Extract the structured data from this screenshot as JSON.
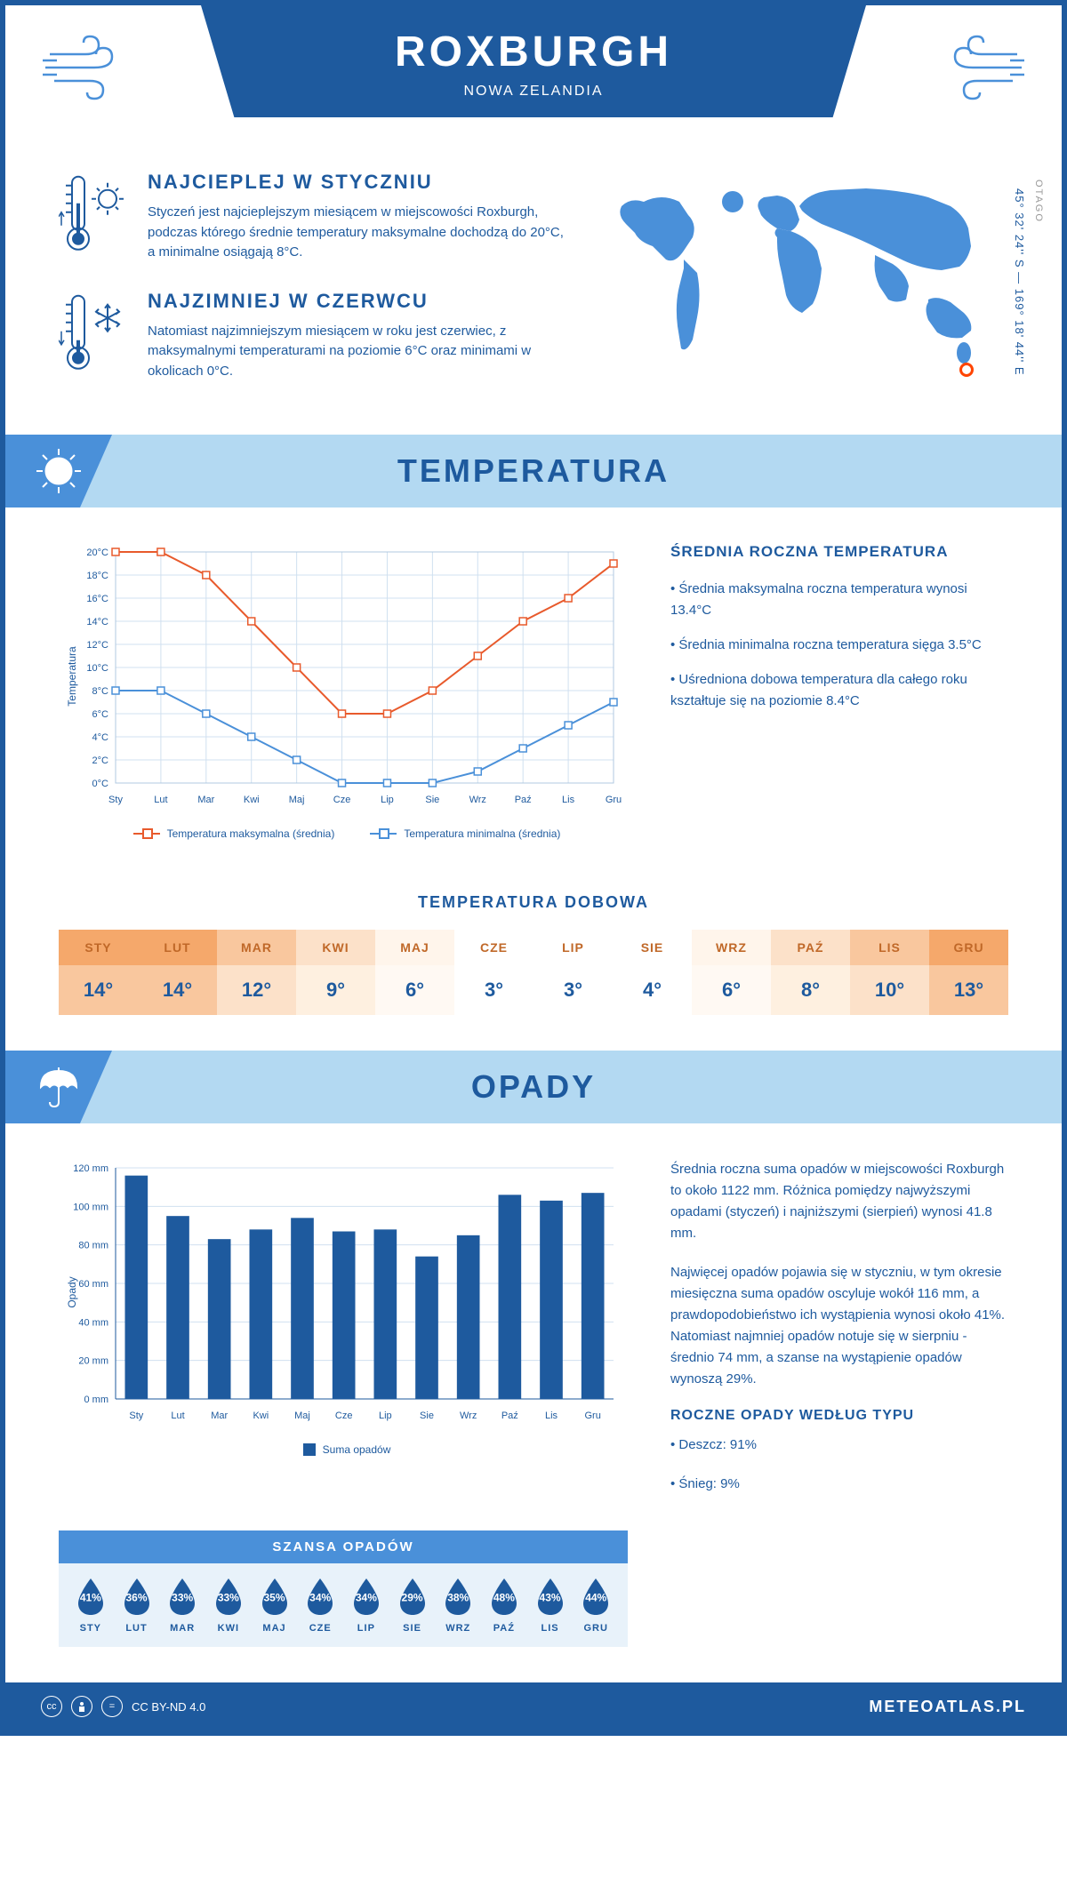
{
  "header": {
    "title": "ROXBURGH",
    "subtitle": "NOWA ZELANDIA"
  },
  "coords": "45° 32' 24'' S — 169° 18' 44'' E",
  "region": "OTAGO",
  "map_marker": {
    "left_pct": 88,
    "top_pct": 81
  },
  "warmest": {
    "title": "NAJCIEPLEJ W STYCZNIU",
    "text": "Styczeń jest najcieplejszym miesiącem w miejscowości Roxburgh, podczas którego średnie temperatury maksymalne dochodzą do 20°C, a minimalne osiągają 8°C."
  },
  "coldest": {
    "title": "NAJZIMNIEJ W CZERWCU",
    "text": "Natomiast najzimniejszym miesiącem w roku jest czerwiec, z maksymalnymi temperaturami na poziomie 6°C oraz minimami w okolicach 0°C."
  },
  "temp_section": {
    "title": "TEMPERATURA",
    "months": [
      "Sty",
      "Lut",
      "Mar",
      "Kwi",
      "Maj",
      "Cze",
      "Lip",
      "Sie",
      "Wrz",
      "Paź",
      "Lis",
      "Gru"
    ],
    "y_label": "Temperatura",
    "y_ticks": [
      "0°C",
      "2°C",
      "4°C",
      "6°C",
      "8°C",
      "10°C",
      "12°C",
      "14°C",
      "16°C",
      "18°C",
      "20°C"
    ],
    "ylim": [
      0,
      20
    ],
    "max_series": [
      20,
      20,
      18,
      14,
      10,
      6,
      6,
      8,
      11,
      14,
      16,
      19
    ],
    "min_series": [
      8,
      8,
      6,
      4,
      2,
      0,
      0,
      0,
      1,
      3,
      5,
      7
    ],
    "max_color": "#e85a2c",
    "min_color": "#4a90d9",
    "grid_color": "#d0e0f0",
    "line_width": 2,
    "marker_size": 4,
    "legend_max": "Temperatura maksymalna (średnia)",
    "legend_min": "Temperatura minimalna (średnia)",
    "side_title": "ŚREDNIA ROCZNA TEMPERATURA",
    "side_p1": "• Średnia maksymalna roczna temperatura wynosi 13.4°C",
    "side_p2": "• Średnia minimalna roczna temperatura sięga 3.5°C",
    "side_p3": "• Uśredniona dobowa temperatura dla całego roku kształtuje się na poziomie 8.4°C"
  },
  "daily_temp": {
    "title": "TEMPERATURA DOBOWA",
    "months": [
      "STY",
      "LUT",
      "MAR",
      "KWI",
      "MAJ",
      "CZE",
      "LIP",
      "SIE",
      "WRZ",
      "PAŹ",
      "LIS",
      "GRU"
    ],
    "values": [
      "14°",
      "14°",
      "12°",
      "9°",
      "6°",
      "3°",
      "3°",
      "4°",
      "6°",
      "8°",
      "10°",
      "13°"
    ],
    "header_colors": [
      "#f5a86b",
      "#f5a86b",
      "#f9c79e",
      "#fce1c9",
      "#fff5eb",
      "#ffffff",
      "#ffffff",
      "#ffffff",
      "#fff5eb",
      "#fce1c9",
      "#f9c79e",
      "#f5a86b"
    ],
    "value_colors": [
      "#f9c79e",
      "#f9c79e",
      "#fce1c9",
      "#fef0e0",
      "#fff9f3",
      "#ffffff",
      "#ffffff",
      "#ffffff",
      "#fff9f3",
      "#fef0e0",
      "#fce1c9",
      "#f9c79e"
    ],
    "header_text_color": "#c06828"
  },
  "precip_section": {
    "title": "OPADY",
    "months": [
      "Sty",
      "Lut",
      "Mar",
      "Kwi",
      "Maj",
      "Cze",
      "Lip",
      "Sie",
      "Wrz",
      "Paź",
      "Lis",
      "Gru"
    ],
    "y_label": "Opady",
    "y_ticks": [
      "0 mm",
      "20 mm",
      "40 mm",
      "60 mm",
      "80 mm",
      "100 mm",
      "120 mm"
    ],
    "ylim": [
      0,
      120
    ],
    "values": [
      116,
      95,
      83,
      88,
      94,
      87,
      88,
      74,
      85,
      106,
      103,
      107
    ],
    "bar_color": "#1e5a9e",
    "bar_width": 0.55,
    "legend": "Suma opadów",
    "side_p1": "Średnia roczna suma opadów w miejscowości Roxburgh to około 1122 mm. Różnica pomiędzy najwyższymi opadami (styczeń) i najniższymi (sierpień) wynosi 41.8 mm.",
    "side_p2": "Najwięcej opadów pojawia się w styczniu, w tym okresie miesięczna suma opadów oscyluje wokół 116 mm, a prawdopodobieństwo ich wystąpienia wynosi około 41%. Natomiast najmniej opadów notuje się w sierpniu - średnio 74 mm, a szanse na wystąpienie opadów wynoszą 29%.",
    "type_title": "ROCZNE OPADY WEDŁUG TYPU",
    "type_rain": "• Deszcz: 91%",
    "type_snow": "• Śnieg: 9%"
  },
  "chance": {
    "title": "SZANSA OPADÓW",
    "months": [
      "STY",
      "LUT",
      "MAR",
      "KWI",
      "MAJ",
      "CZE",
      "LIP",
      "SIE",
      "WRZ",
      "PAŹ",
      "LIS",
      "GRU"
    ],
    "values": [
      "41%",
      "36%",
      "33%",
      "33%",
      "35%",
      "34%",
      "34%",
      "29%",
      "38%",
      "48%",
      "43%",
      "44%"
    ],
    "drop_color": "#1e5a9e"
  },
  "footer": {
    "license": "CC BY-ND 4.0",
    "site": "METEOATLAS.PL"
  }
}
